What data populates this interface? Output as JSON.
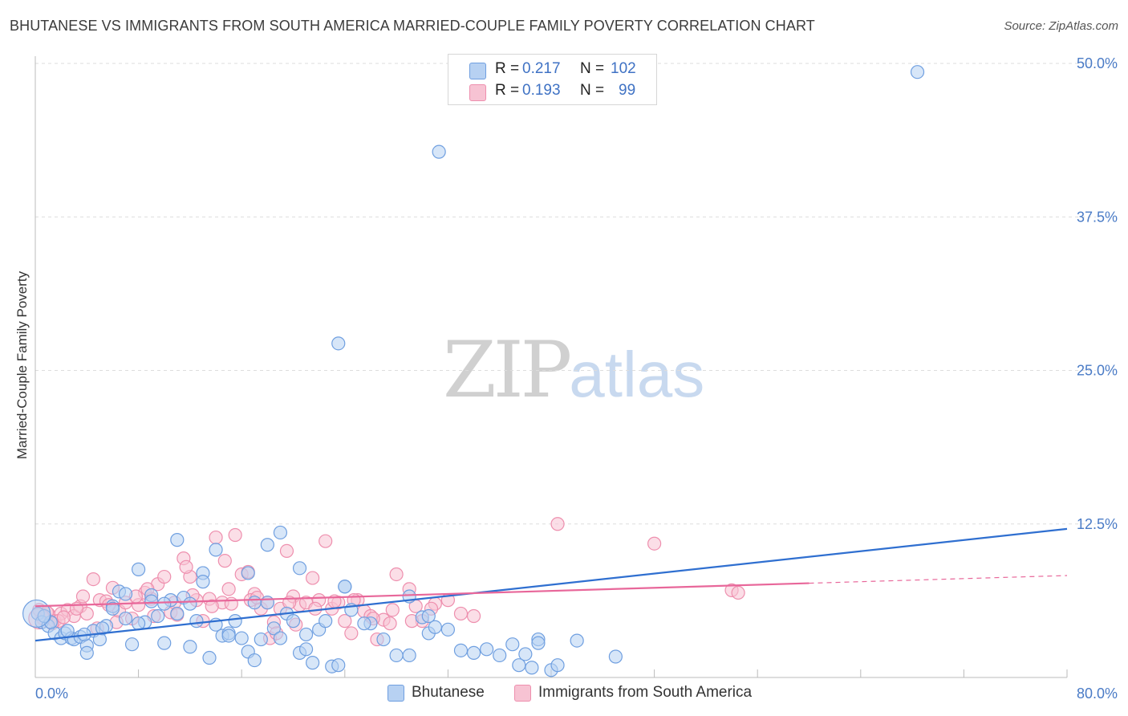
{
  "title": "BHUTANESE VS IMMIGRANTS FROM SOUTH AMERICA MARRIED-COUPLE FAMILY POVERTY CORRELATION CHART",
  "source": "Source: ZipAtlas.com",
  "watermark": {
    "zip": "ZIP",
    "atlas": "atlas"
  },
  "legend": {
    "rows": [
      {
        "r_label": "R =",
        "r_value": "0.217",
        "n_label": "N =",
        "n_value": "102"
      },
      {
        "r_label": "R =",
        "r_value": "0.193",
        "n_label": "N =",
        "n_value": "99"
      }
    ]
  },
  "colors": {
    "blue_fill": "#b7d1f2",
    "blue_stroke": "#6f9fe0",
    "blue_line": "#2f6fd0",
    "pink_fill": "#f7c3d3",
    "pink_stroke": "#ee8fae",
    "pink_line": "#e8679a",
    "grid": "#dddddd",
    "tick_text": "#4a7bc6"
  },
  "chart_data": {
    "type": "scatter",
    "title": "BHUTANESE VS IMMIGRANTS FROM SOUTH AMERICA MARRIED-COUPLE FAMILY POVERTY CORRELATION CHART",
    "xlabel": "",
    "ylabel": "Married-Couple Family Poverty",
    "xlim": [
      0,
      80
    ],
    "ylim": [
      0,
      52
    ],
    "x_tick_labels": [
      "0.0%",
      "80.0%"
    ],
    "y_ticks": [
      12.5,
      25.0,
      37.5,
      50.0
    ],
    "y_tick_labels": [
      "12.5%",
      "25.0%",
      "37.5%",
      "50.0%"
    ],
    "grid": true,
    "series": [
      {
        "name": "Bhutanese",
        "color": "blue",
        "trend": {
          "x0": 0,
          "y0": 3.0,
          "x1": 80,
          "y1": 12.1,
          "dashed_from": null
        },
        "points": [
          [
            68.4,
            49.3
          ],
          [
            31.3,
            42.8
          ],
          [
            23.5,
            27.2
          ],
          [
            0.2,
            5.2
          ],
          [
            0.5,
            4.5
          ],
          [
            1.0,
            4.2
          ],
          [
            1.5,
            3.6
          ],
          [
            2.0,
            3.2
          ],
          [
            2.3,
            3.6
          ],
          [
            2.8,
            3.2
          ],
          [
            3.0,
            3.1
          ],
          [
            3.5,
            3.3
          ],
          [
            4.0,
            2.6
          ],
          [
            4.5,
            3.8
          ],
          [
            5.0,
            3.1
          ],
          [
            5.5,
            4.2
          ],
          [
            6.0,
            5.8
          ],
          [
            6.5,
            7.0
          ],
          [
            7.0,
            6.8
          ],
          [
            7.5,
            2.7
          ],
          [
            8.0,
            8.8
          ],
          [
            8.5,
            4.5
          ],
          [
            9.0,
            6.7
          ],
          [
            9.5,
            5.0
          ],
          [
            10.0,
            2.8
          ],
          [
            10.5,
            6.3
          ],
          [
            11.0,
            5.2
          ],
          [
            11.5,
            6.5
          ],
          [
            12.0,
            2.5
          ],
          [
            12.5,
            4.6
          ],
          [
            13.0,
            8.5
          ],
          [
            13.5,
            1.6
          ],
          [
            14.0,
            4.3
          ],
          [
            14.5,
            3.4
          ],
          [
            15.0,
            3.6
          ],
          [
            15.5,
            4.6
          ],
          [
            16.0,
            3.2
          ],
          [
            16.5,
            2.1
          ],
          [
            17.0,
            1.4
          ],
          [
            17.5,
            3.1
          ],
          [
            18.0,
            6.1
          ],
          [
            18.5,
            4.0
          ],
          [
            19.0,
            3.2
          ],
          [
            19.5,
            5.2
          ],
          [
            20.0,
            4.6
          ],
          [
            20.5,
            2.0
          ],
          [
            21.0,
            2.3
          ],
          [
            21.5,
            1.2
          ],
          [
            22.0,
            3.9
          ],
          [
            22.5,
            4.6
          ],
          [
            23.0,
            0.9
          ],
          [
            23.5,
            1.0
          ],
          [
            24.0,
            7.4
          ],
          [
            24.5,
            5.5
          ],
          [
            26.0,
            4.4
          ],
          [
            27.0,
            3.1
          ],
          [
            28.0,
            1.8
          ],
          [
            29.0,
            1.8
          ],
          [
            30.0,
            4.9
          ],
          [
            30.5,
            3.6
          ],
          [
            31.0,
            4.1
          ],
          [
            32.0,
            3.9
          ],
          [
            33.0,
            2.2
          ],
          [
            34.0,
            2.0
          ],
          [
            35.0,
            2.3
          ],
          [
            36.0,
            1.8
          ],
          [
            37.0,
            2.7
          ],
          [
            38.0,
            1.9
          ],
          [
            39.0,
            3.1
          ],
          [
            40.0,
            0.6
          ],
          [
            40.5,
            1.0
          ],
          [
            42.0,
            3.0
          ],
          [
            45.0,
            1.7
          ],
          [
            11.0,
            11.2
          ],
          [
            14.0,
            10.4
          ],
          [
            18.0,
            10.8
          ],
          [
            19.0,
            11.8
          ],
          [
            20.5,
            8.9
          ],
          [
            7.0,
            4.8
          ],
          [
            9.0,
            6.2
          ],
          [
            10.0,
            6.0
          ],
          [
            12.0,
            6.0
          ],
          [
            15.0,
            3.4
          ],
          [
            16.5,
            8.5
          ],
          [
            24.0,
            7.4
          ],
          [
            29.0,
            6.6
          ],
          [
            4.0,
            2.0
          ],
          [
            6.0,
            5.6
          ],
          [
            8.0,
            4.4
          ],
          [
            13.0,
            7.8
          ],
          [
            2.5,
            3.8
          ],
          [
            3.8,
            3.5
          ],
          [
            5.2,
            4.0
          ],
          [
            21.0,
            3.5
          ],
          [
            17.0,
            6.1
          ],
          [
            25.5,
            4.4
          ],
          [
            30.5,
            5.0
          ],
          [
            37.5,
            1.0
          ],
          [
            38.5,
            0.8
          ],
          [
            39.0,
            2.8
          ],
          [
            1.2,
            4.5
          ],
          [
            0.7,
            5.0
          ]
        ]
      },
      {
        "name": "Immigrants from South America",
        "color": "pink",
        "trend": {
          "x0": 0,
          "y0": 5.8,
          "x1": 80,
          "y1": 8.3,
          "dashed_from": 60
        },
        "points": [
          [
            40.5,
            12.5
          ],
          [
            48.0,
            10.9
          ],
          [
            0.3,
            5.5
          ],
          [
            0.6,
            4.8
          ],
          [
            1.0,
            5.2
          ],
          [
            1.5,
            4.6
          ],
          [
            2.0,
            5.2
          ],
          [
            2.5,
            5.5
          ],
          [
            3.0,
            5.0
          ],
          [
            3.5,
            5.8
          ],
          [
            4.0,
            5.2
          ],
          [
            4.5,
            8.0
          ],
          [
            5.0,
            6.3
          ],
          [
            5.5,
            6.2
          ],
          [
            6.0,
            7.3
          ],
          [
            6.5,
            5.4
          ],
          [
            7.0,
            6.1
          ],
          [
            7.5,
            4.8
          ],
          [
            8.0,
            5.9
          ],
          [
            8.5,
            6.9
          ],
          [
            9.0,
            6.4
          ],
          [
            9.5,
            7.6
          ],
          [
            10.0,
            8.2
          ],
          [
            10.5,
            5.3
          ],
          [
            11.0,
            5.1
          ],
          [
            11.5,
            9.7
          ],
          [
            12.0,
            8.2
          ],
          [
            12.5,
            6.3
          ],
          [
            13.0,
            4.6
          ],
          [
            13.5,
            6.4
          ],
          [
            14.0,
            11.4
          ],
          [
            14.5,
            6.1
          ],
          [
            15.0,
            7.2
          ],
          [
            15.5,
            11.6
          ],
          [
            16.0,
            8.4
          ],
          [
            16.5,
            8.6
          ],
          [
            17.0,
            6.8
          ],
          [
            17.5,
            5.6
          ],
          [
            18.0,
            6.1
          ],
          [
            18.5,
            4.5
          ],
          [
            19.0,
            5.6
          ],
          [
            19.5,
            10.3
          ],
          [
            20.0,
            6.6
          ],
          [
            20.5,
            5.9
          ],
          [
            21.0,
            6.1
          ],
          [
            21.5,
            8.1
          ],
          [
            22.0,
            6.3
          ],
          [
            22.5,
            11.1
          ],
          [
            23.0,
            5.6
          ],
          [
            23.5,
            6.1
          ],
          [
            24.0,
            4.6
          ],
          [
            24.5,
            3.6
          ],
          [
            25.0,
            6.3
          ],
          [
            25.5,
            5.4
          ],
          [
            26.0,
            5.0
          ],
          [
            26.5,
            3.1
          ],
          [
            27.0,
            4.7
          ],
          [
            27.5,
            4.4
          ],
          [
            28.0,
            8.4
          ],
          [
            29.0,
            7.2
          ],
          [
            29.5,
            5.8
          ],
          [
            30.0,
            4.6
          ],
          [
            31.0,
            6.0
          ],
          [
            32.0,
            6.3
          ],
          [
            33.0,
            5.2
          ],
          [
            34.0,
            5.0
          ],
          [
            54.0,
            7.1
          ],
          [
            54.5,
            6.9
          ],
          [
            1.8,
            4.6
          ],
          [
            2.2,
            4.9
          ],
          [
            3.2,
            5.6
          ],
          [
            4.8,
            4.0
          ],
          [
            6.3,
            4.5
          ],
          [
            7.8,
            6.6
          ],
          [
            9.2,
            5.0
          ],
          [
            10.8,
            6.1
          ],
          [
            12.2,
            6.7
          ],
          [
            13.7,
            5.8
          ],
          [
            15.2,
            6.0
          ],
          [
            16.7,
            6.3
          ],
          [
            18.2,
            3.2
          ],
          [
            19.7,
            6.1
          ],
          [
            20.2,
            4.3
          ],
          [
            21.7,
            5.6
          ],
          [
            23.2,
            6.2
          ],
          [
            24.7,
            6.3
          ],
          [
            26.2,
            4.8
          ],
          [
            27.7,
            5.5
          ],
          [
            29.2,
            4.6
          ],
          [
            30.7,
            5.6
          ],
          [
            0.9,
            5.3
          ],
          [
            1.3,
            4.4
          ],
          [
            3.7,
            6.6
          ],
          [
            5.7,
            5.9
          ],
          [
            8.7,
            7.2
          ],
          [
            11.7,
            9.0
          ],
          [
            14.7,
            9.5
          ],
          [
            17.2,
            6.5
          ],
          [
            18.7,
            3.6
          ]
        ]
      }
    ]
  },
  "bottom_legend": [
    {
      "label": "Bhutanese",
      "color": "blue"
    },
    {
      "label": "Immigrants from South America",
      "color": "pink"
    }
  ]
}
